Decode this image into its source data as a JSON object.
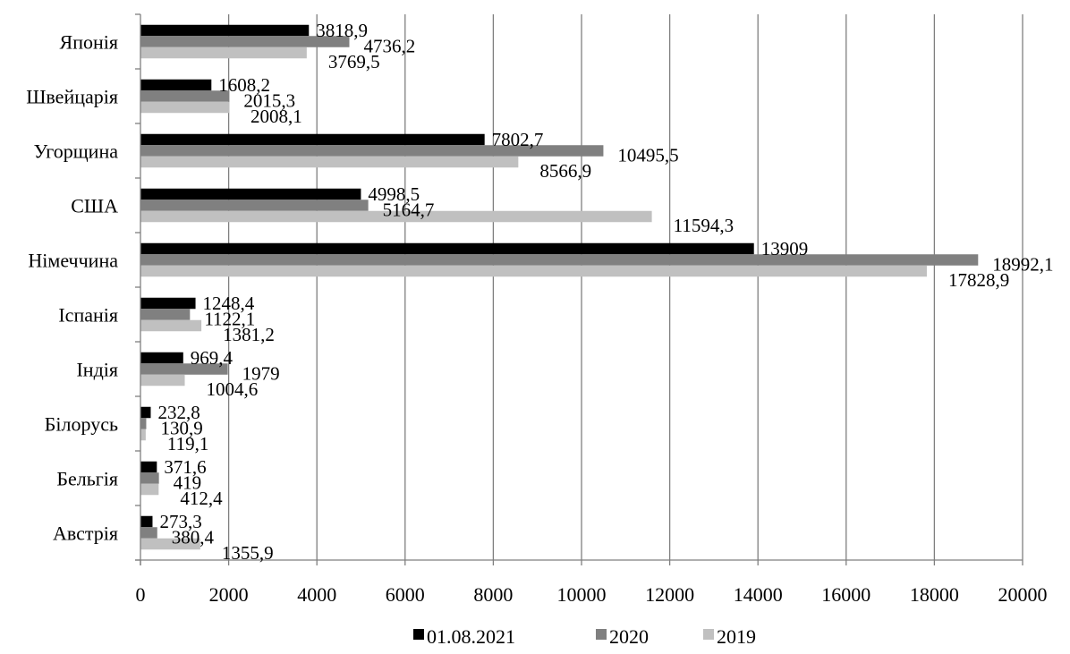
{
  "chart_data": {
    "type": "bar",
    "orientation": "horizontal",
    "categories": [
      "Японія",
      "Швейцарія",
      "Угорщина",
      "США",
      "Німеччина",
      "Іспанія",
      "Індія",
      "Білорусь",
      "Бельгія",
      "Австрія"
    ],
    "series": [
      {
        "name": "01.08.2021",
        "color": "#000000",
        "values": [
          3818.9,
          1608.2,
          7802.7,
          4998.5,
          13909,
          1248.4,
          969.4,
          232.8,
          371.6,
          273.3
        ],
        "labels": [
          "3818,9",
          "1608,2",
          "7802,7",
          "4998,5",
          "13909",
          "1248,4",
          "969,4",
          "232,8",
          "371,6",
          "273,3"
        ]
      },
      {
        "name": "2020",
        "color": "#808080",
        "values": [
          4736.2,
          2015.3,
          10495.5,
          5164.7,
          18992.1,
          1122.1,
          1979,
          130.9,
          419,
          380.4
        ],
        "labels": [
          "4736,2",
          "2015,3",
          "10495,5",
          "5164,7",
          "18992,1",
          "1122,1",
          "1979",
          "130,9",
          "419",
          "380,4"
        ]
      },
      {
        "name": "2019",
        "color": "#c0c0c0",
        "values": [
          3769.5,
          2008.1,
          8566.9,
          11594.3,
          17828.9,
          1381.2,
          1004.6,
          119.1,
          412.4,
          1355.9
        ],
        "labels": [
          "3769,5",
          "2008,1",
          "8566,9",
          "11594,3",
          "17828,9",
          "1381,2",
          "1004,6",
          "119,1",
          "412,4",
          "1355,9"
        ]
      }
    ],
    "xlim": [
      0,
      20000
    ],
    "xticks": [
      0,
      2000,
      4000,
      6000,
      8000,
      10000,
      12000,
      14000,
      16000,
      18000,
      20000
    ],
    "grid": "vertical",
    "legend": "bottom"
  }
}
